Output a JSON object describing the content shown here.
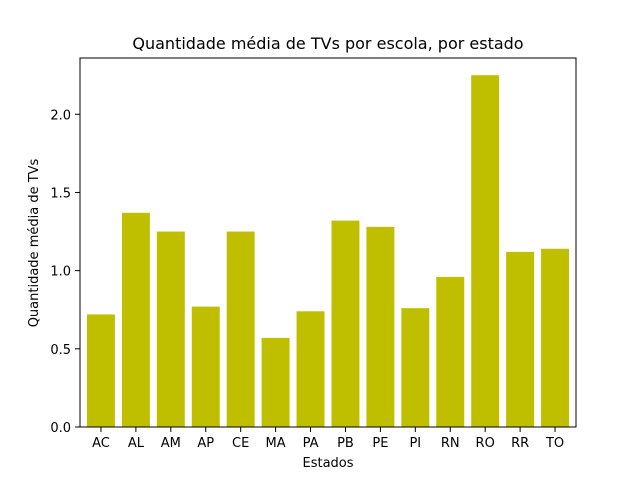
{
  "chart_data": {
    "type": "bar",
    "title": "Quantidade média de TVs por escola, por estado",
    "xlabel": "Estados",
    "ylabel": "Quantidade média de TVs",
    "categories": [
      "AC",
      "AL",
      "AM",
      "AP",
      "CE",
      "MA",
      "PA",
      "PB",
      "PE",
      "PI",
      "RN",
      "RO",
      "RR",
      "TO"
    ],
    "values": [
      0.72,
      1.37,
      1.25,
      0.77,
      1.25,
      0.57,
      0.74,
      1.32,
      1.28,
      0.76,
      0.96,
      2.25,
      1.12,
      1.14
    ],
    "ylim": [
      0,
      2.36
    ],
    "yticks": [
      0.0,
      0.5,
      1.0,
      1.5,
      2.0
    ],
    "ytick_labels": [
      "0.0",
      "0.5",
      "1.0",
      "1.5",
      "2.0"
    ],
    "bar_color": "#bfbf00",
    "grid": false,
    "legend": "none"
  }
}
